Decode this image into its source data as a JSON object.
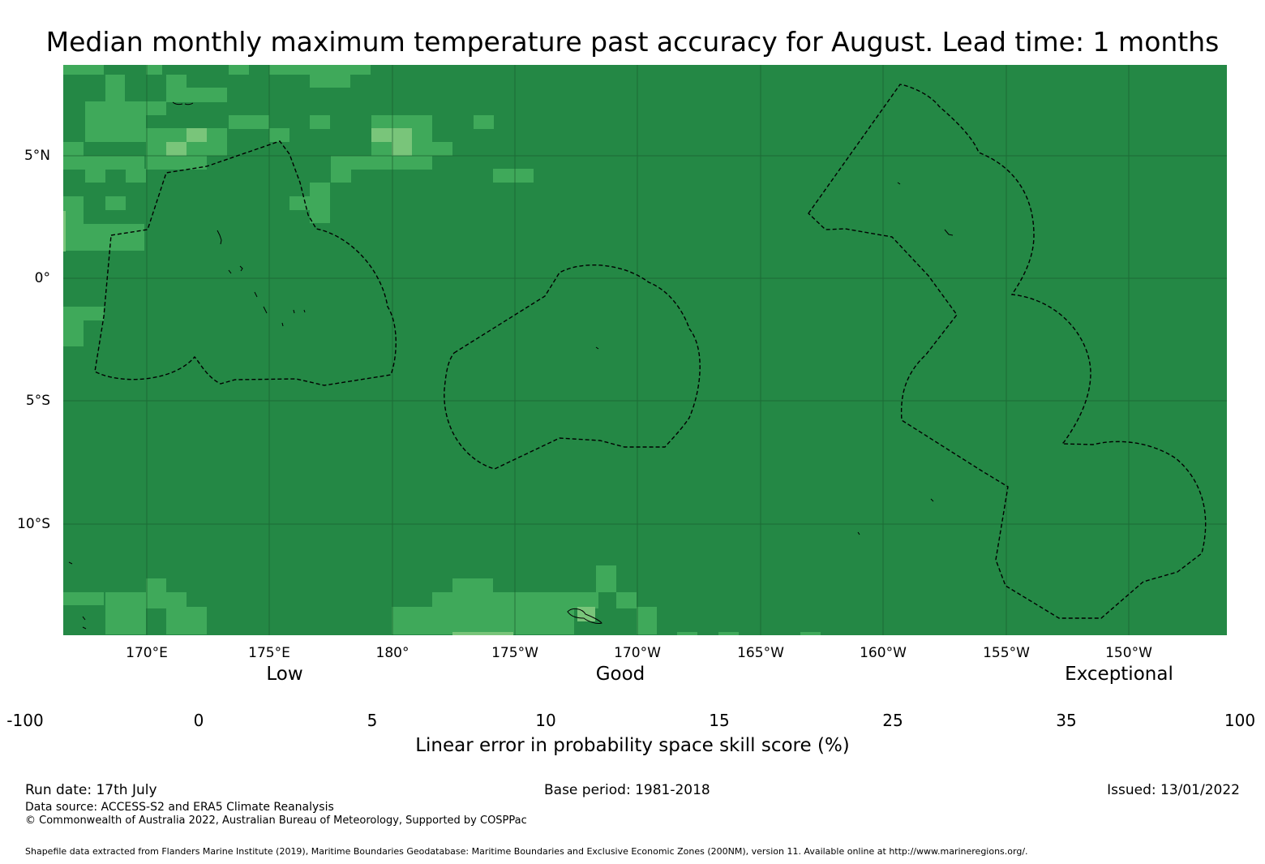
{
  "title": "Median monthly maximum temperature past accuracy for August. Lead time: 1 months",
  "map": {
    "longitude_labels": [
      "170°E",
      "175°E",
      "180°",
      "175°W",
      "170°W",
      "165°W",
      "160°W",
      "155°W",
      "150°W"
    ],
    "latitude_labels": [
      "5°N",
      "0°",
      "5°S",
      "10°S"
    ],
    "colors": {
      "ocean_dominant": "#248845",
      "band_25_35": "#3fa95a",
      "band_15_25": "#79c57a",
      "band_10_15": "#addd8e",
      "band_5_10": "#d9f0a3"
    }
  },
  "legend": {
    "categories": [
      "Low",
      "Good",
      "Exceptional"
    ],
    "ticks": [
      "-100",
      "0",
      "5",
      "10",
      "15",
      "25",
      "35",
      "100"
    ],
    "bins": [
      {
        "from": -100,
        "to": 0,
        "color": "#ffffff"
      },
      {
        "from": 0,
        "to": 5,
        "color": "#ffffcc"
      },
      {
        "from": 5,
        "to": 10,
        "color": "#d9f0a3"
      },
      {
        "from": 10,
        "to": 15,
        "color": "#addd8e"
      },
      {
        "from": 15,
        "to": 25,
        "color": "#79c57a"
      },
      {
        "from": 25,
        "to": 35,
        "color": "#3fa95a"
      },
      {
        "from": 35,
        "to": 100,
        "color": "#248845"
      }
    ],
    "title": "Linear error in probability space skill score (%)"
  },
  "footer": {
    "run_date": "Run date: 17th July",
    "base_period": "Base period: 1981-2018",
    "issued": "Issued: 13/01/2022",
    "data_source": "Data source: ACCESS-S2 and ERA5 Climate Reanalysis",
    "copyright": "© Commonwealth of Australia 2022, Australian Bureau of Meteorology, Supported by COSPPac",
    "shapefile": "Shapefile data extracted from Flanders Marine Institute (2019), Maritime Boundaries Geodatabase: Maritime Boundaries and Exclusive Economic Zones (200NM), version 11. Available online at http://www.marineregions.org/."
  }
}
